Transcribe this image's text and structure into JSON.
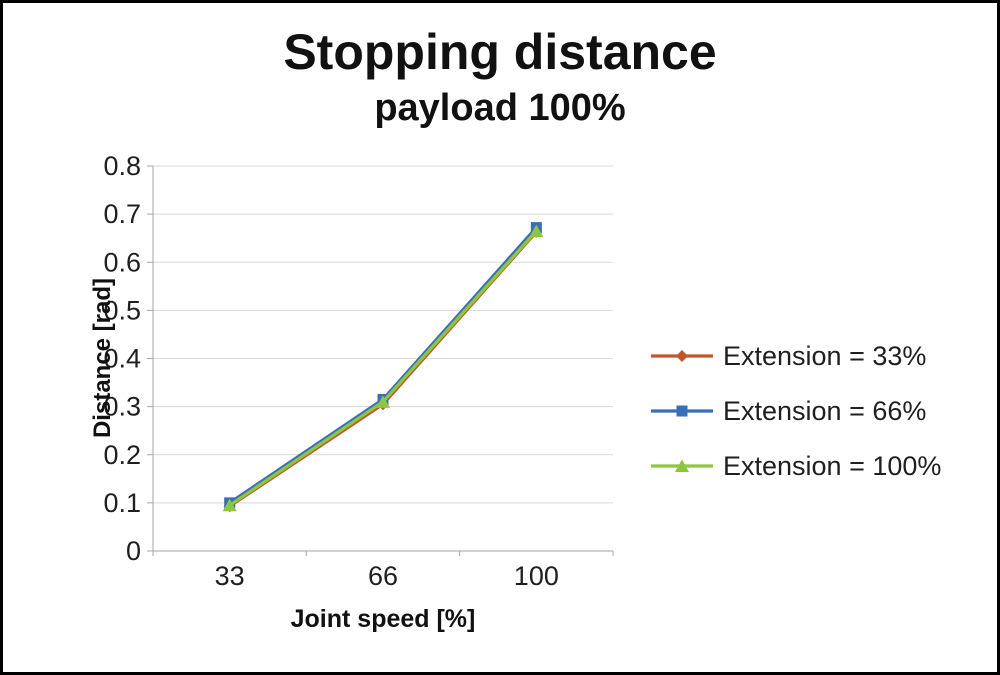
{
  "chart_data": {
    "type": "line",
    "title": "Stopping distance",
    "subtitle": "payload 100%",
    "xlabel": "Joint speed [%]",
    "ylabel": "Distance [rad]",
    "categories": [
      33,
      66,
      100
    ],
    "x_tick_labels": [
      "33",
      "66",
      "100"
    ],
    "ylim": [
      0,
      0.8
    ],
    "ytick_step": 0.1,
    "y_tick_labels": [
      "0",
      "0.1",
      "0.2",
      "0.3",
      "0.4",
      "0.5",
      "0.6",
      "0.7",
      "0.8"
    ],
    "grid": true,
    "legend_position": "right",
    "series": [
      {
        "name": "Extension = 33%",
        "marker": "diamond",
        "color": "#C0562B",
        "values": [
          0.093,
          0.305,
          0.663
        ]
      },
      {
        "name": "Extension = 66%",
        "marker": "square",
        "color": "#3A6FB8",
        "values": [
          0.1,
          0.315,
          0.672
        ]
      },
      {
        "name": "Extension = 100%",
        "marker": "triangle",
        "color": "#8DC63F",
        "values": [
          0.095,
          0.31,
          0.665
        ]
      }
    ],
    "colors": {
      "grid": "#D9D9D9",
      "axis": "#A6A6A6",
      "text": "#1F1F1F",
      "title": "#111111"
    }
  }
}
